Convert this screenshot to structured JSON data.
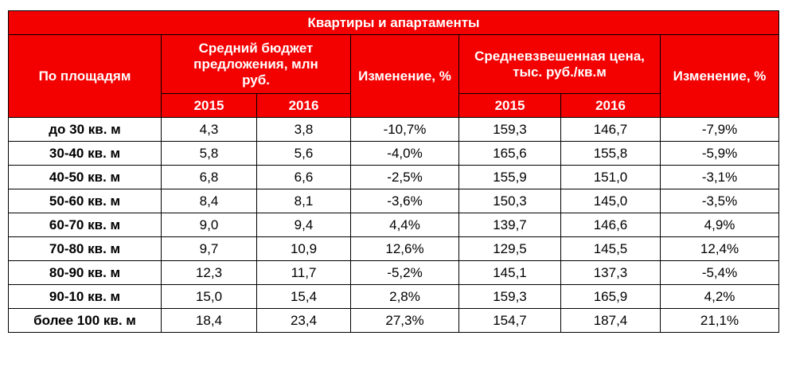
{
  "table": {
    "title": "Квартиры и апартаменты",
    "headers": {
      "area": "По площадям",
      "avg_budget": "Средний бюджет предложения, млн руб.",
      "change_budget": "Изменение, %",
      "avg_price": "Средневзвешенная цена, тыс. руб./кв.м",
      "change_price": "Изменение, %"
    },
    "years": {
      "budget_2015": "2015",
      "budget_2016": "2016",
      "price_2015": "2015",
      "price_2016": "2016"
    },
    "rows": [
      {
        "area": "до 30 кв. м",
        "b2015": "4,3",
        "b2016": "3,8",
        "bchg": "-10,7%",
        "p2015": "159,3",
        "p2016": "146,7",
        "pchg": "-7,9%"
      },
      {
        "area": "30-40 кв. м",
        "b2015": "5,8",
        "b2016": "5,6",
        "bchg": "-4,0%",
        "p2015": "165,6",
        "p2016": "155,8",
        "pchg": "-5,9%"
      },
      {
        "area": "40-50 кв. м",
        "b2015": "6,8",
        "b2016": "6,6",
        "bchg": "-2,5%",
        "p2015": "155,9",
        "p2016": "151,0",
        "pchg": "-3,1%"
      },
      {
        "area": "50-60 кв. м",
        "b2015": "8,4",
        "b2016": "8,1",
        "bchg": "-3,6%",
        "p2015": "150,3",
        "p2016": "145,0",
        "pchg": "-3,5%"
      },
      {
        "area": "60-70 кв. м",
        "b2015": "9,0",
        "b2016": "9,4",
        "bchg": "4,4%",
        "p2015": "139,7",
        "p2016": "146,6",
        "pchg": "4,9%"
      },
      {
        "area": "70-80 кв. м",
        "b2015": "9,7",
        "b2016": "10,9",
        "bchg": "12,6%",
        "p2015": "129,5",
        "p2016": "145,5",
        "pchg": "12,4%"
      },
      {
        "area": "80-90 кв. м",
        "b2015": "12,3",
        "b2016": "11,7",
        "bchg": "-5,2%",
        "p2015": "145,1",
        "p2016": "137,3",
        "pchg": "-5,4%"
      },
      {
        "area": "90-10 кв. м",
        "b2015": "15,0",
        "b2016": "15,4",
        "bchg": "2,8%",
        "p2015": "159,3",
        "p2016": "165,9",
        "pchg": "4,2%"
      },
      {
        "area": "более 100 кв. м",
        "b2015": "18,4",
        "b2016": "23,4",
        "bchg": "27,3%",
        "p2015": "154,7",
        "p2016": "187,4",
        "pchg": "21,1%"
      }
    ]
  },
  "colors": {
    "header_bg": "#f30000",
    "header_text": "#ffffff",
    "border": "#000000"
  }
}
